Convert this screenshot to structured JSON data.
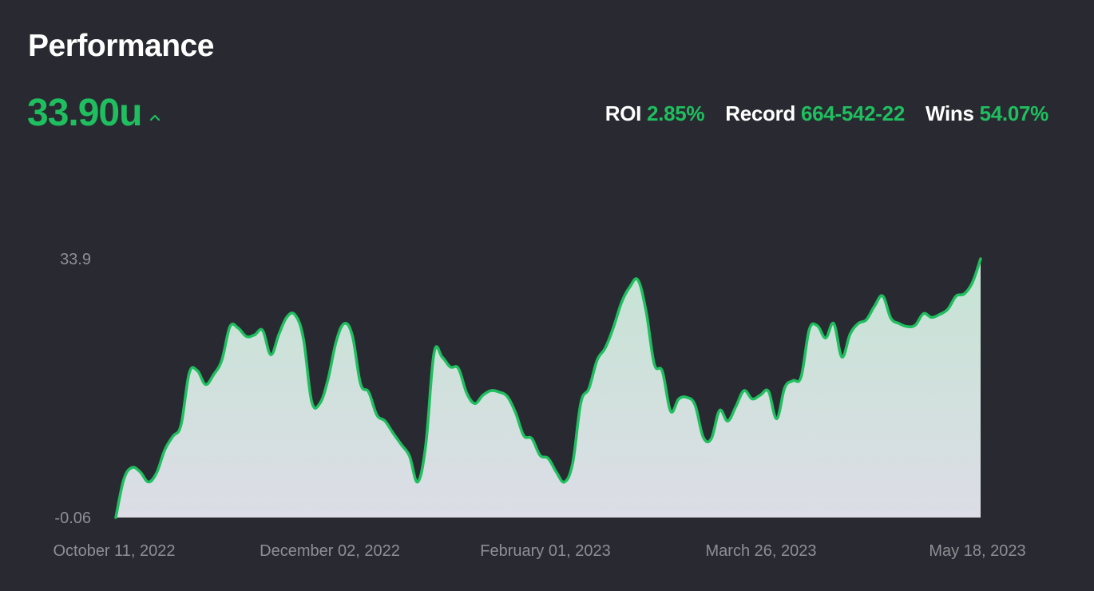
{
  "page": {
    "title": "Performance"
  },
  "summary": {
    "value": "33.90u",
    "trend": "up",
    "trend_icon": "chevron-up-icon",
    "roi_label": "ROI",
    "roi_value": "2.85%",
    "record_label": "Record",
    "record_value": "664-542-22",
    "wins_label": "Wins",
    "wins_value": "54.07%"
  },
  "colors": {
    "background": "#292a31",
    "accent": "#1fbf5f",
    "line": "#1fbf5f",
    "fill_top": "#c6e4d4",
    "fill_bottom": "#dcdde6",
    "tick": "#8e8f95"
  },
  "chart_data": {
    "type": "area",
    "title": "",
    "xlabel": "",
    "ylabel": "",
    "ylim": [
      -0.06,
      33.9
    ],
    "y_ticks": [
      "33.9",
      "-0.06"
    ],
    "x_ticks": [
      "October 11, 2022",
      "December 02, 2022",
      "February 01, 2023",
      "March 26, 2023",
      "May 18, 2023"
    ],
    "grid": false,
    "legend": "none",
    "series": [
      {
        "values": [
          -0.06,
          5.0,
          6.5,
          5.9,
          4.6,
          5.8,
          8.8,
          10.6,
          12.1,
          18.9,
          19.2,
          17.4,
          18.7,
          20.6,
          25.0,
          24.8,
          23.7,
          23.9,
          24.5,
          21.3,
          24.0,
          26.3,
          26.5,
          23.4,
          15.2,
          14.9,
          18.0,
          23.0,
          25.4,
          23.8,
          17.5,
          16.4,
          13.4,
          12.6,
          11.0,
          9.5,
          8.0,
          4.6,
          9.5,
          21.5,
          21.0,
          19.7,
          19.5,
          16.3,
          14.9,
          16.0,
          16.6,
          16.4,
          15.8,
          13.7,
          10.7,
          10.3,
          8.1,
          7.7,
          5.9,
          4.6,
          7.1,
          15.0,
          16.9,
          20.6,
          22.2,
          24.9,
          28.2,
          30.2,
          31.1,
          27.0,
          20.1,
          19.1,
          13.9,
          15.5,
          15.7,
          14.7,
          10.5,
          10.3,
          14.0,
          12.6,
          14.5,
          16.6,
          15.5,
          16.0,
          16.5,
          12.9,
          17.0,
          17.9,
          18.4,
          24.6,
          25.1,
          23.5,
          25.4,
          21.0,
          24.0,
          25.4,
          25.9,
          27.7,
          29.0,
          26.1,
          25.4,
          25.0,
          25.2,
          26.7,
          26.2,
          26.6,
          27.3,
          29.0,
          29.3,
          30.8,
          33.9
        ]
      }
    ]
  }
}
